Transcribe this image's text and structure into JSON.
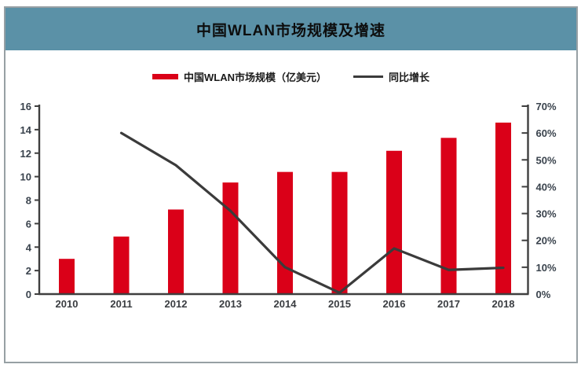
{
  "title": "中国WLAN市场规模及增速",
  "legend": {
    "items": [
      {
        "label": "中国WLAN市场规模（亿美元）",
        "marker": "bar-swatch",
        "color": "#da0018"
      },
      {
        "label": "同比增长",
        "marker": "line-swatch",
        "color": "#3b3b3b"
      }
    ]
  },
  "colors": {
    "header_background": "#5b91a7",
    "bar": "#da0018",
    "line": "#3b3b3b",
    "axis": "#3f3f3f",
    "panel_border": "#97a0a4"
  },
  "chart_data": {
    "type": "bar",
    "title": "中国WLAN市场规模及增速",
    "categories": [
      "2010",
      "2011",
      "2012",
      "2013",
      "2014",
      "2015",
      "2016",
      "2017",
      "2018"
    ],
    "series": [
      {
        "name": "中国WLAN市场规模（亿美元）",
        "type": "bar",
        "axis": "left",
        "color": "#da0018",
        "values": [
          3.0,
          4.9,
          7.2,
          9.5,
          10.4,
          10.4,
          12.2,
          13.3,
          14.6
        ]
      },
      {
        "name": "同比增长",
        "type": "line",
        "axis": "right",
        "color": "#3b3b3b",
        "values": [
          null,
          60,
          48,
          31,
          10,
          0.5,
          17,
          9,
          9.8
        ]
      }
    ],
    "left_axis": {
      "range": [
        0,
        16
      ],
      "tick_step": 2,
      "tick_labels": [
        "0",
        "2",
        "4",
        "6",
        "8",
        "10",
        "12",
        "14",
        "16"
      ]
    },
    "right_axis": {
      "range": [
        0,
        70
      ],
      "tick_step": 10,
      "tick_labels": [
        "0%",
        "10%",
        "20%",
        "30%",
        "40%",
        "50%",
        "60%",
        "70%"
      ]
    },
    "grid": false,
    "legend_position": "top"
  }
}
